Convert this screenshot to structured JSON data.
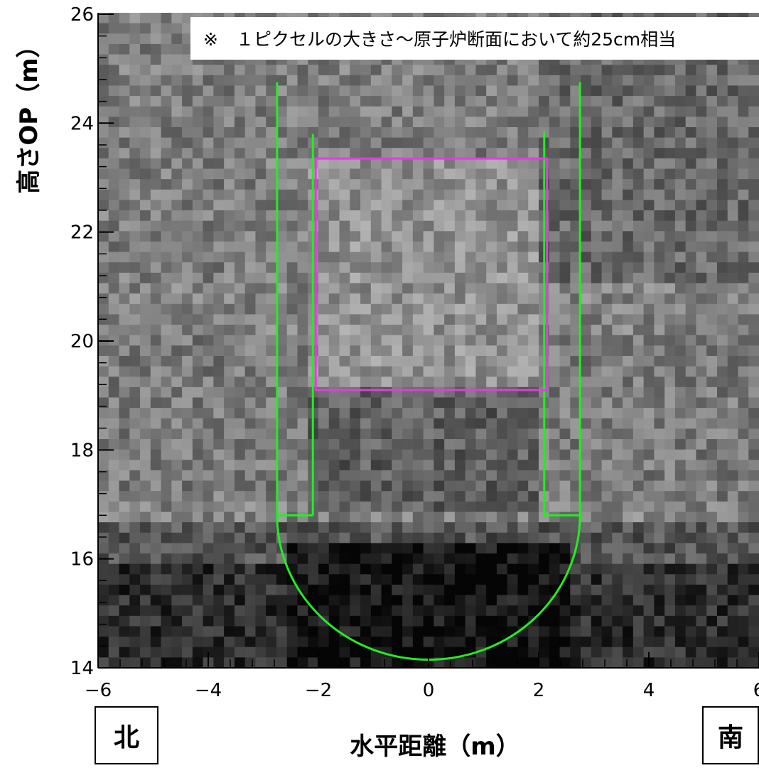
{
  "chart_data": {
    "type": "heatmap",
    "title": "",
    "xlabel": "水平距離（m）",
    "ylabel": "高さOP（m）",
    "xlim": [
      -6,
      6
    ],
    "ylim": [
      14,
      26
    ],
    "xticks": [
      -6,
      -4,
      -2,
      0,
      2,
      4,
      6
    ],
    "yticks": [
      14,
      16,
      18,
      20,
      22,
      24,
      26
    ],
    "xtick_labels": [
      "−6",
      "−4",
      "−2",
      "0",
      "2",
      "4",
      "6"
    ],
    "ytick_labels": [
      "14",
      "16",
      "18",
      "20",
      "22",
      "24",
      "26"
    ],
    "pixel_size_m": 0.25,
    "colormap": "grayscale",
    "annotation": "※　１ピクセルの大きさ～原子炉断面において約25cm相当",
    "overlays": {
      "vessel_outline": {
        "color": "#22ee22",
        "outer_wall_x": [
          -2.75,
          2.75
        ],
        "inner_wall_x": [
          -2.1,
          2.1
        ],
        "outer_wall_top_y": [
          24.75,
          24.75
        ],
        "inner_wall_top_y": [
          23.8,
          23.85
        ],
        "ledge_y": 16.8,
        "bottom_center_x": 0,
        "bottom_y": 14.15
      },
      "core_region": {
        "color": "#e838e8",
        "x": [
          -2.05,
          2.15
        ],
        "y": [
          19.1,
          23.35
        ]
      }
    },
    "direction_labels": {
      "left": "北",
      "right": "南"
    }
  }
}
